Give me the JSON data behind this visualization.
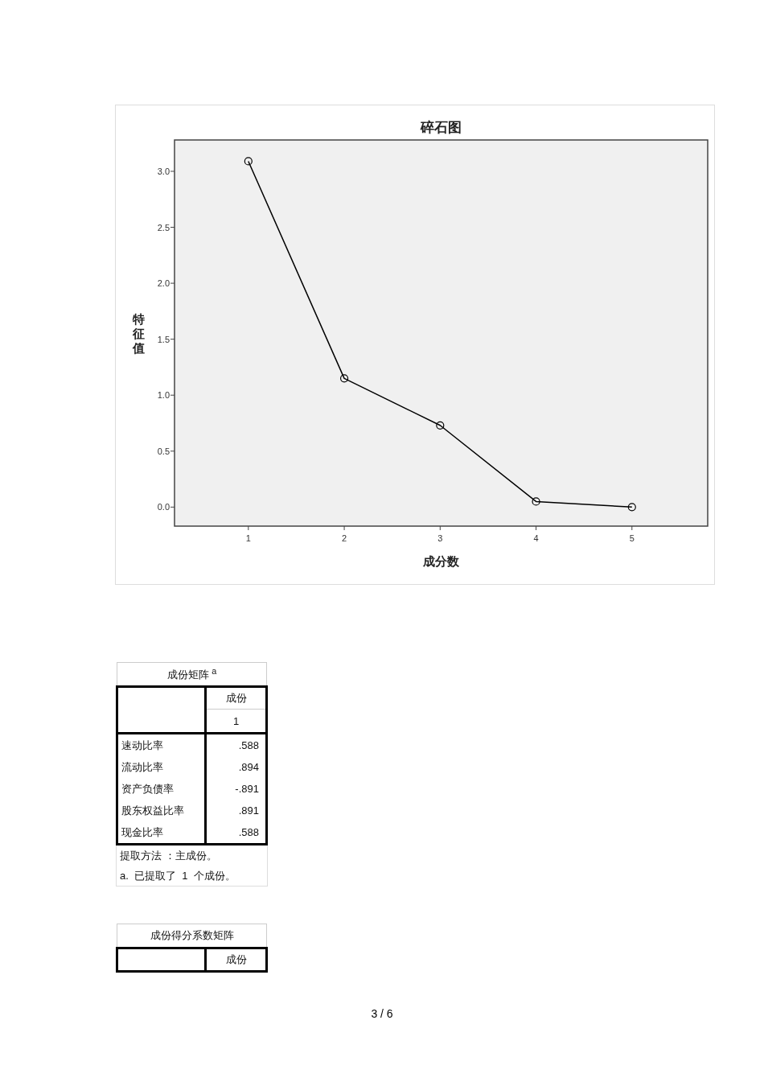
{
  "chart_data": [
    {
      "type": "line",
      "title": "碎石图",
      "xlabel": "成分数",
      "ylabel": "特征值",
      "x": [
        1,
        2,
        3,
        4,
        5
      ],
      "series": [
        {
          "color": "#000000",
          "values": [
            3.09,
            1.15,
            0.73,
            0.05,
            0.0
          ]
        }
      ],
      "marker": "circle",
      "line_style": "solid",
      "grid": false,
      "xlim": [
        0.23,
        5.79
      ],
      "xticks": [
        1,
        2,
        3,
        4,
        5
      ],
      "ylim": [
        -0.17,
        3.28
      ],
      "yticks": [
        {
          "value": 0,
          "label": "0.0"
        },
        {
          "value": 0.5,
          "label": "0.5"
        },
        {
          "value": 1,
          "label": "1.0"
        },
        {
          "value": 1.5,
          "label": "1.5"
        },
        {
          "value": 2,
          "label": "2.0"
        },
        {
          "value": 2.5,
          "label": "2.5"
        },
        {
          "value": 3,
          "label": "3.0"
        }
      ]
    },
    {
      "type": "other",
      "title": "成份矩阵 $^{a}$",
      "legend_title": "成份",
      "categories": [
        "速动比率",
        "流动比率",
        "资产负债率",
        "股东权益比率",
        "现金比率"
      ],
      "series": [
        {
          "name": "1",
          "values": [
            0.588,
            0.894,
            -0.891,
            0.891,
            0.588
          ],
          "value_labels": [
            ".588",
            ".894",
            "-.891",
            ".891",
            ".588"
          ]
        }
      ],
      "annotations": [
        "提取方法 ：主成份。",
        "a.  已提取了  1  个成份。"
      ]
    },
    {
      "type": "other",
      "title": "成份得分系数矩阵",
      "legend_title": "成份",
      "annotations": [
        "3 / 6"
      ]
    }
  ]
}
